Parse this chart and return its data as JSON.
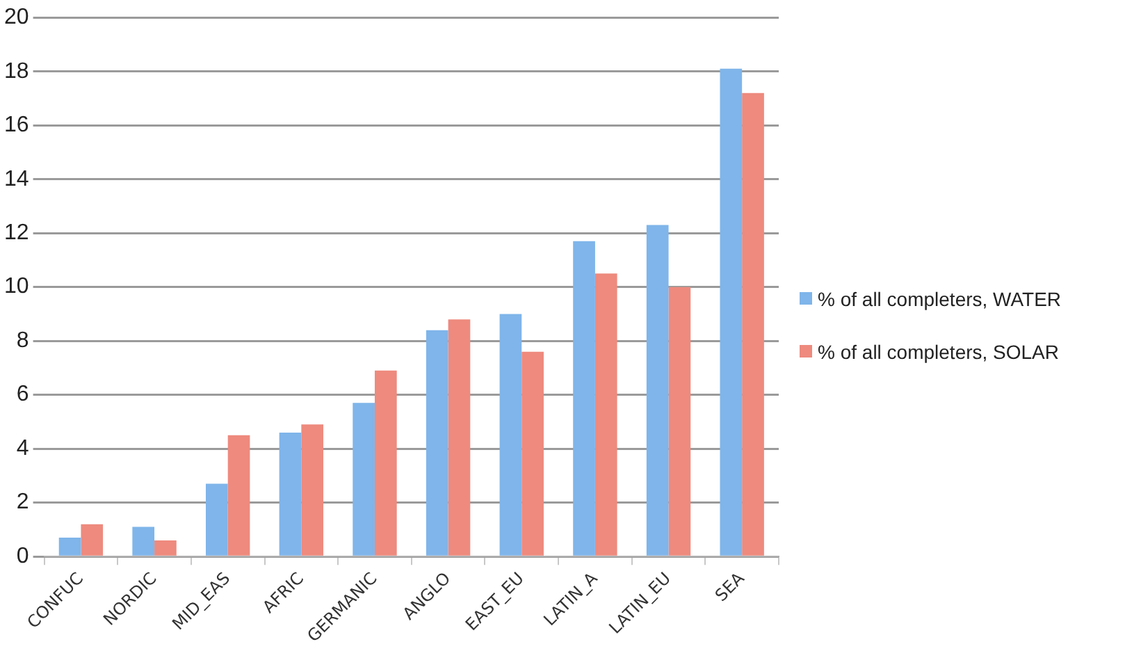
{
  "chart_data": {
    "type": "bar",
    "categories": [
      "CONFUC",
      "NORDIC",
      "MID_EAS",
      "AFRIC",
      "GERMANIC",
      "ANGLO",
      "EAST_EU",
      "LATIN_A",
      "LATIN_EU",
      "SEA"
    ],
    "series": [
      {
        "name": "% of all completers, WATER",
        "color": "#7fb5ea",
        "values": [
          0.7,
          1.1,
          2.7,
          4.6,
          5.7,
          8.4,
          9.0,
          11.7,
          12.3,
          18.1
        ]
      },
      {
        "name": "% of all completers, SOLAR",
        "color": "#ee8a7e",
        "values": [
          1.2,
          0.6,
          4.5,
          4.9,
          6.9,
          8.8,
          7.6,
          10.5,
          10.0,
          17.2
        ]
      }
    ],
    "ylim": [
      0,
      20
    ],
    "yticks": [
      0,
      2,
      4,
      6,
      8,
      10,
      12,
      14,
      16,
      18,
      20
    ],
    "grid": "y",
    "legend": "right"
  }
}
